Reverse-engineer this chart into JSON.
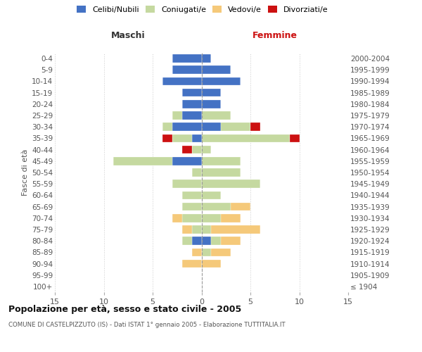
{
  "age_groups": [
    "100+",
    "95-99",
    "90-94",
    "85-89",
    "80-84",
    "75-79",
    "70-74",
    "65-69",
    "60-64",
    "55-59",
    "50-54",
    "45-49",
    "40-44",
    "35-39",
    "30-34",
    "25-29",
    "20-24",
    "15-19",
    "10-14",
    "5-9",
    "0-4"
  ],
  "birth_years": [
    "≤ 1904",
    "1905-1909",
    "1910-1914",
    "1915-1919",
    "1920-1924",
    "1925-1929",
    "1930-1934",
    "1935-1939",
    "1940-1944",
    "1945-1949",
    "1950-1954",
    "1955-1959",
    "1960-1964",
    "1965-1969",
    "1970-1974",
    "1975-1979",
    "1980-1984",
    "1985-1989",
    "1990-1994",
    "1995-1999",
    "2000-2004"
  ],
  "maschi": {
    "celibi": [
      0,
      0,
      0,
      0,
      1,
      0,
      0,
      0,
      0,
      0,
      0,
      3,
      0,
      1,
      3,
      2,
      2,
      2,
      4,
      3,
      3
    ],
    "coniugati": [
      0,
      0,
      0,
      0,
      1,
      1,
      2,
      2,
      2,
      3,
      1,
      6,
      1,
      2,
      1,
      1,
      0,
      0,
      0,
      0,
      0
    ],
    "vedovi": [
      0,
      0,
      2,
      1,
      0,
      1,
      1,
      0,
      0,
      0,
      0,
      0,
      0,
      0,
      0,
      0,
      0,
      0,
      0,
      0,
      0
    ],
    "divorziati": [
      0,
      0,
      0,
      0,
      0,
      0,
      0,
      0,
      0,
      0,
      0,
      0,
      1,
      1,
      0,
      0,
      0,
      0,
      0,
      0,
      0
    ]
  },
  "femmine": {
    "nubili": [
      0,
      0,
      0,
      0,
      1,
      0,
      0,
      0,
      0,
      0,
      0,
      0,
      0,
      0,
      2,
      0,
      2,
      2,
      4,
      3,
      1
    ],
    "coniugate": [
      0,
      0,
      0,
      1,
      1,
      1,
      2,
      3,
      2,
      6,
      4,
      4,
      1,
      9,
      3,
      3,
      0,
      0,
      0,
      0,
      0
    ],
    "vedove": [
      0,
      0,
      2,
      2,
      2,
      5,
      2,
      2,
      0,
      0,
      0,
      0,
      0,
      0,
      0,
      0,
      0,
      0,
      0,
      0,
      0
    ],
    "divorziate": [
      0,
      0,
      0,
      0,
      0,
      0,
      0,
      0,
      0,
      0,
      0,
      0,
      0,
      1,
      1,
      0,
      0,
      0,
      0,
      0,
      0
    ]
  },
  "color_celibi": "#4472C4",
  "color_coniugati": "#c5d9a0",
  "color_vedovi": "#f5c97a",
  "color_divorziati": "#cc1111",
  "xlim": 15,
  "title": "Popolazione per età, sesso e stato civile - 2005",
  "subtitle": "COMUNE DI CASTELPIZZUTO (IS) - Dati ISTAT 1° gennaio 2005 - Elaborazione TUTTITALIA.IT",
  "ylabel_left": "Fasce di età",
  "xlabel_maschi": "Maschi",
  "xlabel_femmine": "Femmine"
}
